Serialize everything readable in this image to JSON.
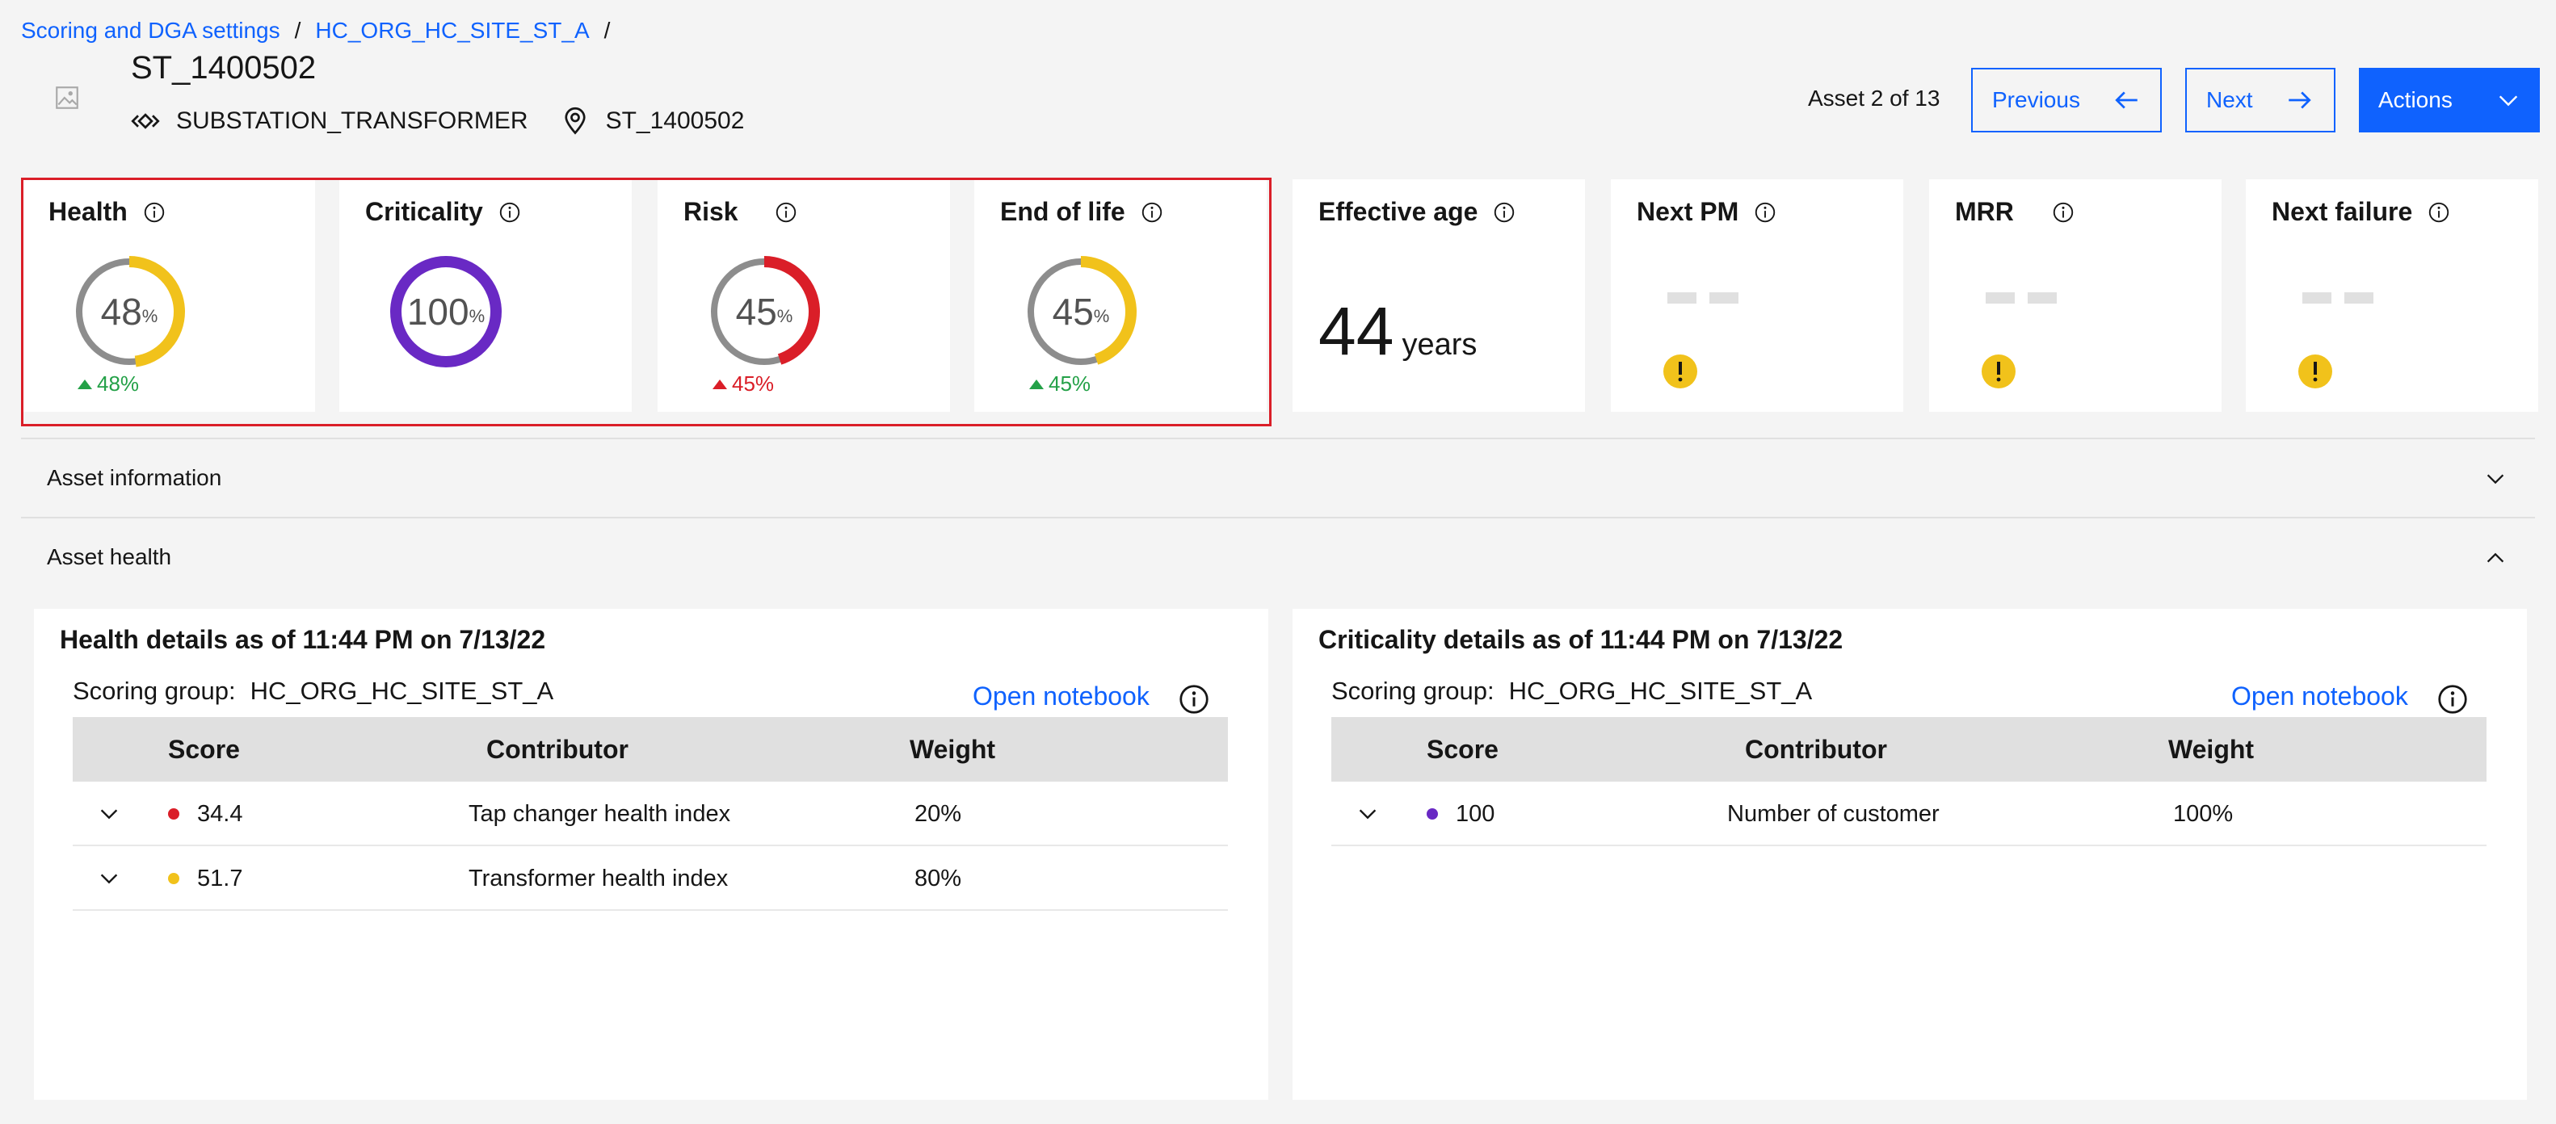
{
  "breadcrumb": {
    "items": [
      "Scoring and DGA settings",
      "HC_ORG_HC_SITE_ST_A"
    ],
    "separator": "/"
  },
  "asset": {
    "title": "ST_1400502",
    "type": "SUBSTATION_TRANSFORMER",
    "location": "ST_1400502"
  },
  "nav": {
    "counter": "Asset 2 of 13",
    "previous": "Previous",
    "next": "Next",
    "actions": "Actions"
  },
  "colors": {
    "accent": "#0f62fe",
    "highlight": "#da1e28",
    "yellow": "#f1c21b",
    "red": "#da1e28",
    "purple": "#6929c4",
    "green": "#24a148",
    "gray": "#8d8d8d"
  },
  "metrics": {
    "health": {
      "title": "Health",
      "value": "48",
      "unit": "%",
      "trend": "48%",
      "level": 0.48,
      "color": "#f1c21b",
      "trend_color": "#24a148"
    },
    "criticality": {
      "title": "Criticality",
      "value": "100",
      "unit": "%",
      "level": 1.0,
      "color": "#6929c4"
    },
    "risk": {
      "title": "Risk",
      "value": "45",
      "unit": "%",
      "trend": "45%",
      "level": 0.45,
      "color": "#da1e28",
      "trend_color": "#da1e28"
    },
    "end_of_life": {
      "title": "End of life",
      "value": "45",
      "unit": "%",
      "trend": "45%",
      "level": 0.45,
      "color": "#f1c21b",
      "trend_color": "#24a148"
    },
    "effective_age": {
      "title": "Effective age",
      "value": "44",
      "unit": "years"
    },
    "next_pm": {
      "title": "Next PM"
    },
    "mrr": {
      "title": "MRR"
    },
    "next_failure": {
      "title": "Next failure"
    }
  },
  "sections": {
    "asset_information": "Asset information",
    "asset_health": "Asset health"
  },
  "health_panel": {
    "title": "Health details as of 11:44 PM on 7/13/22",
    "scoring_group_label": "Scoring group:",
    "scoring_group": "HC_ORG_HC_SITE_ST_A",
    "open_notebook": "Open notebook",
    "columns": [
      "Score",
      "Contributor",
      "Weight"
    ],
    "rows": [
      {
        "score": "34.4",
        "contributor": "Tap changer health index",
        "weight": "20%",
        "color": "#da1e28"
      },
      {
        "score": "51.7",
        "contributor": "Transformer health index",
        "weight": "80%",
        "color": "#f1c21b"
      }
    ]
  },
  "criticality_panel": {
    "title": "Criticality details as of 11:44 PM on 7/13/22",
    "scoring_group_label": "Scoring group:",
    "scoring_group": "HC_ORG_HC_SITE_ST_A",
    "open_notebook": "Open notebook",
    "columns": [
      "Score",
      "Contributor",
      "Weight"
    ],
    "rows": [
      {
        "score": "100",
        "contributor": "Number of customer",
        "weight": "100%",
        "color": "#6929c4"
      }
    ]
  }
}
